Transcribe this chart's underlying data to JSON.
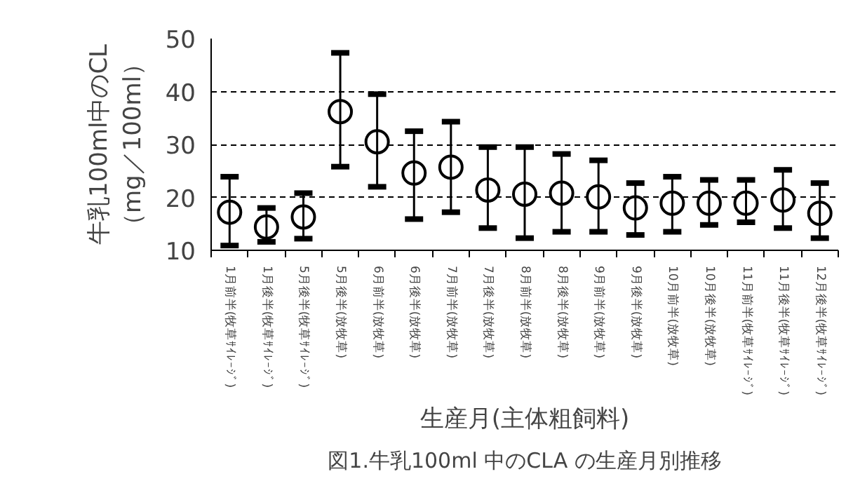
{
  "chart_data": {
    "type": "scatter",
    "ylabel": "牛乳100ml中のCL\n（mg／100ml）",
    "xlabel": "生産月(主体粗飼料)",
    "annotations": [
      "図1.牛乳100ml 中のCLA の生産月別推移"
    ],
    "categories": [
      "1月前半(牧草ｻｲﾚｰｼﾞ)",
      "1月後半(牧草ｻｲﾚｰｼﾞ)",
      "5月後半(牧草ｻｲﾚｰｼﾞ)",
      "5月後半(放牧草)",
      "6月前半(放牧草)",
      "6月後半(放牧草)",
      "7月前半(放牧草)",
      "7月後半(放牧草)",
      "8月前半(放牧草)",
      "8月後半(放牧草)",
      "9月前半(放牧草)",
      "9月後半(放牧草)",
      "10月前半(放牧草)",
      "10月後半(放牧草)",
      "11月前半(牧草ｻｲﾚｰｼﾞ)",
      "11月後半(牧草ｻｲﾚｰｼﾞ)",
      "12月後半(牧草ｻｲﾚｰｼﾞ)"
    ],
    "values": [
      17.2,
      14.4,
      16.3,
      36.2,
      30.5,
      24.6,
      25.7,
      21.4,
      20.6,
      20.8,
      20.1,
      18.0,
      18.9,
      18.9,
      18.9,
      19.5,
      17.0
    ],
    "errors": [
      [
        10.9,
        23.9
      ],
      [
        11.6,
        18.0
      ],
      [
        12.2,
        20.8
      ],
      [
        25.8,
        47.3
      ],
      [
        22.0,
        39.5
      ],
      [
        15.9,
        32.5
      ],
      [
        17.2,
        34.3
      ],
      [
        14.2,
        29.5
      ],
      [
        12.3,
        29.5
      ],
      [
        13.5,
        28.2
      ],
      [
        13.5,
        27.0
      ],
      [
        12.9,
        22.7
      ],
      [
        13.5,
        23.9
      ],
      [
        14.8,
        23.3
      ],
      [
        15.3,
        23.3
      ],
      [
        14.2,
        25.2
      ],
      [
        12.3,
        22.7
      ]
    ],
    "color": "#ffffff",
    "marker": "circle",
    "ylim": [
      10,
      50
    ],
    "yticks": [
      10,
      20,
      30,
      40,
      50
    ],
    "grid": "y"
  }
}
